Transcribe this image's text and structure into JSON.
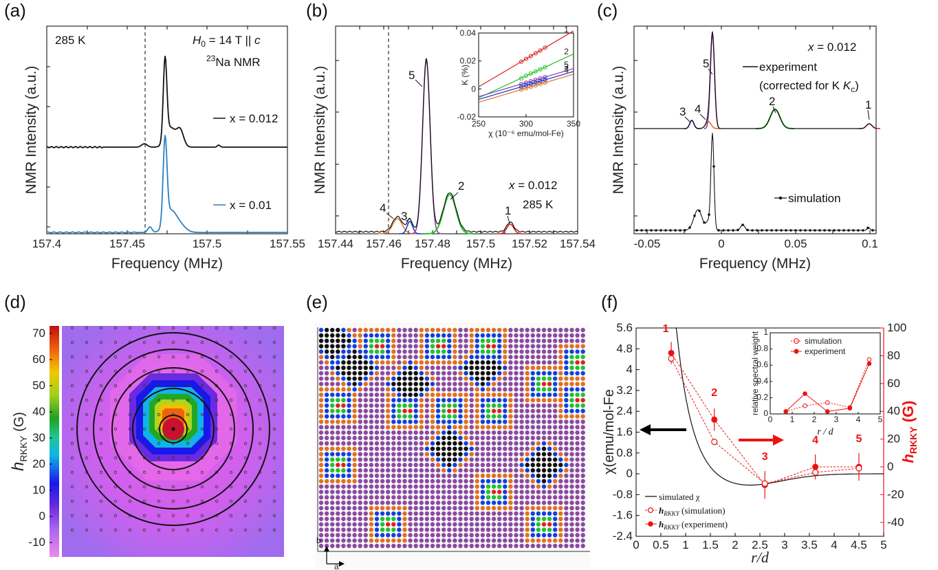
{
  "panel_labels": [
    "(a)",
    "(b)",
    "(c)",
    "(d)",
    "(e)",
    "(f)"
  ],
  "colors": {
    "peak1": "#d62020",
    "peak2": "#22c422",
    "peak3": "#1030c8",
    "peak4": "#e07020",
    "peak5": "#8a3aa8",
    "blue_trace": "#2a7fc0",
    "red": "#e11"
  },
  "panel_a": {
    "temperature": "285 K",
    "field": "H0 = 14 T || c",
    "nucleus": "23Na NMR",
    "legend": [
      "x = 0.012",
      "x = 0.01"
    ],
    "xlabel": "Frequency (MHz)",
    "ylabel": "NMR Intensity (a.u.)",
    "xticks": [
      "157.4",
      "157.45",
      "157.5",
      "157.55"
    ]
  },
  "panel_b": {
    "composition": "x = 0.012",
    "temperature": "285 K",
    "xlabel": "Frequency (MHz)",
    "ylabel": "NMR Intensity (a.u.)",
    "xticks": [
      "157.44",
      "157.46",
      "157.48",
      "157.5",
      "157.52",
      "157.54"
    ],
    "peak_labels": [
      "1",
      "2",
      "3",
      "4",
      "5"
    ],
    "inset": {
      "ylabel": "K (%)",
      "xlabel": "χ (10⁻⁶ emu/mol-Fe)",
      "xticks": [
        "250",
        "300",
        "350"
      ],
      "yticks": [
        "-0.02",
        "0",
        "0.02",
        "0.04"
      ],
      "line_labels": [
        "1",
        "2",
        "5",
        "3",
        "4"
      ]
    }
  },
  "panel_c": {
    "composition": "x = 0.012",
    "legend_experiment": "experiment",
    "legend_experiment_note": "(corrected for K",
    "legend_experiment_sub": "c",
    "legend_simulation": "simulation",
    "xlabel": "Frequency (MHz)",
    "ylabel": "NMR Intensity (a.u.)",
    "xticks": [
      "-0.05",
      "0",
      "0.05",
      "0.1"
    ],
    "peak_labels": [
      "1",
      "2",
      "3",
      "4",
      "5"
    ]
  },
  "panel_d": {
    "colorbar_label": "h",
    "colorbar_sub": "RKKY",
    "colorbar_unit": "(G)",
    "colorbar_ticks": [
      "70",
      "60",
      "50",
      "40",
      "30",
      "20",
      "10",
      "0",
      "-10"
    ]
  },
  "panel_e": {
    "axis_b": "b",
    "axis_a": "a"
  },
  "panel_f": {
    "ylabel_left": "χ(emu/mol-Fe",
    "ylabel_right_main": "h",
    "ylabel_right_sub": "RKKY",
    "ylabel_right_unit": " (G)",
    "xlabel": "r/d",
    "legend": [
      "simulated χ",
      "h",
      "RKKY",
      "(simulation)",
      "(experiment)"
    ],
    "inset_ylabel": "relative spectral weight",
    "inset_xlabel": "r / d",
    "inset_legend": [
      "simulation",
      "experiment"
    ]
  },
  "chart_data": [
    {
      "panel": "f",
      "type": "line",
      "xlabel": "r/d",
      "xlim": [
        0,
        5
      ],
      "ylim_left": [
        -2.4,
        5.6
      ],
      "ylim_right": [
        -50,
        100
      ],
      "yticks_left": [
        "5.6",
        "4.8",
        "4",
        "3.2",
        "2.4",
        "1.6",
        "0.8",
        "0",
        "-0.8",
        "-1.6",
        "-2.4"
      ],
      "yticks_right": [
        "100",
        "80",
        "60",
        "40",
        "20",
        "0",
        "-20",
        "-40"
      ],
      "xticks": [
        "0",
        "0.5",
        "1",
        "1.5",
        "2",
        "2.5",
        "3",
        "3.5",
        "4",
        "4.5",
        "5"
      ],
      "shell_labels": [
        "1",
        "2",
        "3",
        "4",
        "5"
      ],
      "series": [
        {
          "name": "h_RKKY (simulation)",
          "axis": "right",
          "x": [
            0.71,
            1.58,
            2.6,
            3.62,
            4.5
          ],
          "y": [
            78,
            18,
            -12,
            -4,
            -1
          ]
        },
        {
          "name": "h_RKKY (experiment)",
          "axis": "right",
          "x": [
            0.71,
            1.58,
            2.6,
            3.62,
            4.5
          ],
          "y": [
            82,
            34,
            -13,
            0,
            0
          ],
          "yerr": [
            8,
            8,
            10,
            9,
            10
          ]
        }
      ]
    },
    {
      "panel": "f-inset",
      "type": "line",
      "xlim": [
        0,
        5
      ],
      "ylim": [
        0,
        1
      ],
      "xticks": [
        "0",
        "1",
        "2",
        "3",
        "4",
        "5"
      ],
      "yticks": [
        "0",
        "0.2",
        "0.4",
        "0.6",
        "0.8",
        "1"
      ],
      "series": [
        {
          "name": "simulation",
          "x": [
            0.71,
            1.58,
            2.6,
            3.62,
            4.5
          ],
          "y": [
            0.03,
            0.1,
            0.14,
            0.08,
            0.67
          ]
        },
        {
          "name": "experiment",
          "x": [
            0.71,
            1.58,
            2.6,
            3.62,
            4.5
          ],
          "y": [
            0.03,
            0.25,
            0.03,
            0.07,
            0.62
          ]
        }
      ]
    },
    {
      "panel": "b-inset",
      "type": "scatter",
      "xlim": [
        250,
        350
      ],
      "ylim": [
        -0.02,
        0.04
      ],
      "series": [
        {
          "name": "1",
          "x": [
            295,
            300,
            305,
            310,
            315,
            320
          ],
          "y": [
            0.0195,
            0.0215,
            0.0235,
            0.0255,
            0.0275,
            0.0295
          ]
        },
        {
          "name": "2",
          "x": [
            295,
            300,
            305,
            310,
            315,
            320
          ],
          "y": [
            0.0075,
            0.0095,
            0.011,
            0.0125,
            0.014,
            0.0155
          ]
        },
        {
          "name": "5",
          "x": [
            295,
            300,
            305,
            310,
            315,
            320
          ],
          "y": [
            0.0035,
            0.0045,
            0.0055,
            0.0065,
            0.0075,
            0.0085
          ]
        },
        {
          "name": "3",
          "x": [
            295,
            300,
            305,
            310,
            315,
            320
          ],
          "y": [
            0.0015,
            0.0025,
            0.0035,
            0.0045,
            0.0055,
            0.0065
          ]
        },
        {
          "name": "4",
          "x": [
            295,
            300,
            305,
            310,
            315,
            320
          ],
          "y": [
            -0.0005,
            0.0005,
            0.0015,
            0.0025,
            0.0035,
            0.0045
          ]
        }
      ]
    }
  ]
}
